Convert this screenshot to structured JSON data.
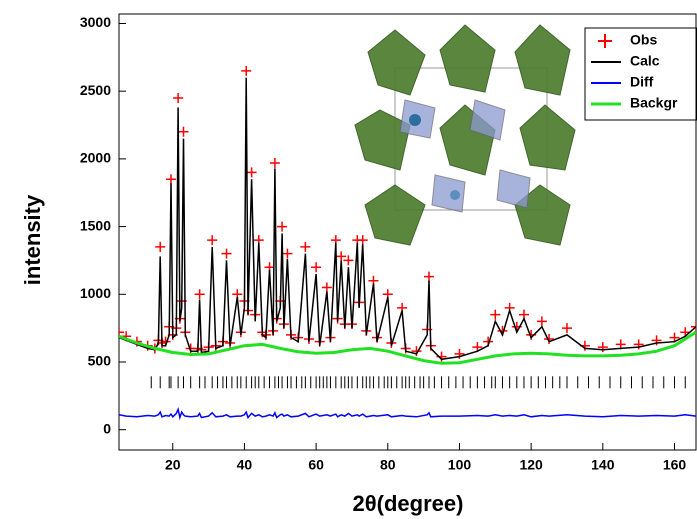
{
  "chart_data": {
    "type": "line",
    "x_label": "2θ(degree)",
    "y_label": "intensity",
    "xlim": [
      5,
      166
    ],
    "ylim": [
      -150,
      3070
    ],
    "xticks": [
      20,
      40,
      60,
      80,
      100,
      120,
      140,
      160
    ],
    "yticks": [
      0,
      500,
      1000,
      1500,
      2000,
      2500,
      3000
    ],
    "x": [
      5,
      7,
      10,
      13,
      15,
      16,
      16.5,
      17,
      18,
      19,
      19.5,
      20,
      21,
      21.5,
      22,
      22.5,
      23,
      23.5,
      25,
      27,
      27.5,
      28,
      30,
      31,
      32,
      34,
      35,
      36,
      38,
      39,
      40,
      40.5,
      41,
      42,
      43,
      44,
      45,
      46,
      47,
      48,
      48.5,
      49,
      50,
      50.5,
      51,
      52,
      53,
      55,
      57,
      58,
      60,
      61,
      63,
      64,
      65.5,
      66,
      67,
      68,
      69,
      70,
      71.5,
      72,
      73,
      74,
      76,
      77,
      80,
      81,
      84,
      85,
      88,
      91,
      91.5,
      92,
      95,
      100,
      105,
      108,
      110,
      112,
      114,
      116,
      118,
      120,
      123,
      125,
      130,
      135,
      140,
      145,
      150,
      155,
      160,
      163,
      166
    ],
    "series": [
      {
        "name": "Obs",
        "color": "#ff0000",
        "mode": "markers",
        "values": [
          720,
          690,
          650,
          620,
          600,
          660,
          1350,
          640,
          650,
          760,
          1850,
          700,
          750,
          2450,
          820,
          950,
          2200,
          720,
          600,
          600,
          1000,
          590,
          610,
          1400,
          620,
          650,
          1300,
          640,
          1000,
          720,
          950,
          2650,
          880,
          1900,
          850,
          1400,
          720,
          700,
          1200,
          730,
          1970,
          820,
          950,
          1500,
          780,
          1300,
          700,
          680,
          1350,
          670,
          1200,
          650,
          1050,
          680,
          1400,
          820,
          1280,
          780,
          1250,
          780,
          1400,
          940,
          1400,
          730,
          1100,
          680,
          1000,
          640,
          900,
          600,
          580,
          740,
          1130,
          620,
          540,
          560,
          610,
          650,
          850,
          730,
          900,
          760,
          850,
          700,
          800,
          670,
          750,
          620,
          610,
          630,
          630,
          660,
          680,
          720,
          760
        ]
      },
      {
        "name": "Calc",
        "color": "#000000",
        "mode": "line",
        "values": [
          680,
          660,
          630,
          600,
          590,
          640,
          1280,
          620,
          620,
          700,
          1820,
          680,
          700,
          2380,
          800,
          900,
          2150,
          700,
          580,
          580,
          960,
          570,
          580,
          1350,
          600,
          620,
          1250,
          620,
          980,
          700,
          900,
          2600,
          850,
          1850,
          800,
          1380,
          700,
          680,
          1180,
          700,
          1930,
          800,
          900,
          1450,
          750,
          1260,
          680,
          650,
          1300,
          650,
          1150,
          620,
          1020,
          650,
          1380,
          800,
          1250,
          750,
          1200,
          750,
          1380,
          900,
          1370,
          700,
          1080,
          650,
          980,
          620,
          880,
          580,
          560,
          700,
          1100,
          600,
          520,
          540,
          580,
          620,
          800,
          700,
          880,
          720,
          820,
          680,
          760,
          650,
          700,
          600,
          590,
          600,
          610,
          640,
          650,
          690,
          760
        ]
      },
      {
        "name": "Diff",
        "color": "#0000ff",
        "mode": "line",
        "values": [
          110,
          100,
          95,
          105,
          100,
          110,
          130,
          95,
          105,
          100,
          115,
          95,
          120,
          150,
          90,
          130,
          110,
          100,
          95,
          100,
          120,
          90,
          100,
          125,
          95,
          100,
          110,
          95,
          100,
          100,
          110,
          130,
          90,
          120,
          100,
          110,
          95,
          100,
          110,
          100,
          125,
          90,
          110,
          115,
          100,
          110,
          95,
          100,
          120,
          95,
          115,
          100,
          110,
          100,
          115,
          95,
          110,
          100,
          120,
          100,
          110,
          100,
          115,
          95,
          105,
          100,
          110,
          95,
          105,
          100,
          95,
          110,
          125,
          95,
          100,
          100,
          105,
          100,
          110,
          100,
          105,
          100,
          110,
          95,
          105,
          100,
          110,
          100,
          95,
          105,
          100,
          105,
          100,
          110,
          100
        ]
      },
      {
        "name": "Backgr",
        "color": "#22e022",
        "mode": "line",
        "x": [
          5,
          10,
          15,
          20,
          25,
          30,
          35,
          40,
          45,
          50,
          55,
          60,
          65,
          70,
          75,
          80,
          85,
          90,
          95,
          100,
          105,
          110,
          115,
          120,
          125,
          130,
          135,
          140,
          145,
          150,
          155,
          160,
          166
        ],
        "values": [
          690,
          640,
          600,
          570,
          555,
          560,
          590,
          620,
          630,
          600,
          575,
          565,
          570,
          590,
          600,
          580,
          545,
          510,
          490,
          495,
          520,
          545,
          560,
          565,
          560,
          550,
          545,
          545,
          550,
          560,
          580,
          620,
          720
        ]
      }
    ],
    "reflections": [
      14,
      16.5,
      19,
      19.5,
      21.5,
      23,
      25,
      27.5,
      29,
      31,
      32.5,
      34,
      35,
      36.5,
      38,
      39,
      40.5,
      42,
      43,
      44,
      45.5,
      47,
      48.5,
      49.5,
      50.5,
      52,
      53,
      54.5,
      56,
      57,
      58.5,
      60,
      61,
      62,
      63,
      64,
      65.5,
      67,
      68,
      69,
      70,
      71.5,
      73,
      74,
      75,
      76,
      77.5,
      79,
      80,
      81,
      82.5,
      84,
      85,
      86,
      87.5,
      89,
      90,
      91.5,
      93,
      95,
      97,
      99,
      101,
      103,
      105,
      107,
      109,
      110,
      112,
      114,
      116,
      118,
      120,
      122,
      124,
      126,
      128,
      130,
      133,
      136,
      139,
      142,
      145,
      148,
      151,
      154,
      157,
      160,
      163,
      166
    ]
  }
}
